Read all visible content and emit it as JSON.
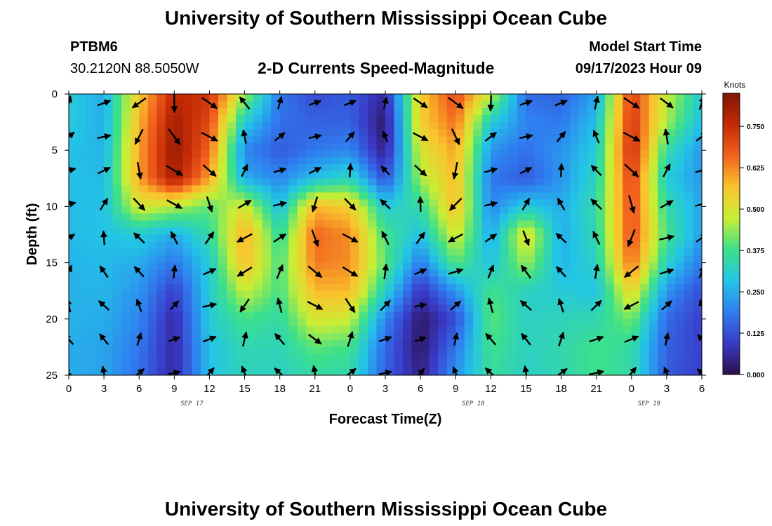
{
  "header": {
    "title": "University of Southern Mississippi Ocean Cube",
    "station_id": "PTBM6",
    "coords": "30.2120N  88.5050W",
    "subtitle": "2-D Currents Speed-Magnitude",
    "model_start_label": "Model Start Time",
    "model_start_value": "09/17/2023 Hour 09"
  },
  "footer": {
    "title": "University of Southern Mississippi Ocean Cube"
  },
  "chart_data": {
    "type": "heatmap",
    "xlabel": "Forecast Time(Z)",
    "ylabel": "Depth (ft)",
    "x_ticks": [
      "0",
      "3",
      "6",
      "9",
      "12",
      "15",
      "18",
      "21",
      "0",
      "3",
      "6",
      "9",
      "12",
      "15",
      "18",
      "21",
      "0",
      "3",
      "6"
    ],
    "x_range_hours": [
      0,
      54
    ],
    "y_ticks": [
      0,
      5,
      10,
      15,
      20,
      25
    ],
    "y_range": [
      0,
      25
    ],
    "date_labels": [
      {
        "hour": 10.5,
        "text": "SEP 17"
      },
      {
        "hour": 34.5,
        "text": "SEP 18"
      },
      {
        "hour": 49.5,
        "text": "SEP 19"
      }
    ],
    "colorbar": {
      "label": "Knots",
      "ticks": [
        "0.000",
        "0.125",
        "0.250",
        "0.375",
        "0.500",
        "0.625",
        "0.750"
      ],
      "range": [
        0,
        0.85
      ],
      "colors": [
        "#2b0f4a",
        "#3a3ac8",
        "#2f7ef0",
        "#23c5e6",
        "#3de08a",
        "#c8ee35",
        "#f9c52d",
        "#f2621e",
        "#c42a05",
        "#801605"
      ]
    },
    "speed_grid_note": "values in knots, rows = depth 0,2.5,...,25 ft; cols = hours 0,3,...,54",
    "speed_grid": [
      [
        0.3,
        0.25,
        0.55,
        0.76,
        0.74,
        0.45,
        0.18,
        0.12,
        0.14,
        0.06,
        0.55,
        0.7,
        0.48,
        0.16,
        0.15,
        0.24,
        0.72,
        0.48,
        0.3
      ],
      [
        0.3,
        0.25,
        0.58,
        0.8,
        0.7,
        0.3,
        0.17,
        0.15,
        0.15,
        0.02,
        0.55,
        0.65,
        0.3,
        0.2,
        0.18,
        0.28,
        0.74,
        0.45,
        0.27
      ],
      [
        0.28,
        0.26,
        0.6,
        0.82,
        0.66,
        0.2,
        0.14,
        0.18,
        0.2,
        0.04,
        0.5,
        0.6,
        0.22,
        0.17,
        0.22,
        0.3,
        0.76,
        0.35,
        0.22
      ],
      [
        0.28,
        0.27,
        0.6,
        0.8,
        0.6,
        0.25,
        0.2,
        0.28,
        0.33,
        0.12,
        0.45,
        0.58,
        0.18,
        0.14,
        0.22,
        0.33,
        0.72,
        0.3,
        0.22
      ],
      [
        0.27,
        0.28,
        0.5,
        0.46,
        0.4,
        0.5,
        0.27,
        0.58,
        0.55,
        0.3,
        0.35,
        0.58,
        0.2,
        0.3,
        0.25,
        0.35,
        0.7,
        0.35,
        0.24
      ],
      [
        0.27,
        0.28,
        0.3,
        0.25,
        0.35,
        0.6,
        0.35,
        0.66,
        0.62,
        0.38,
        0.28,
        0.5,
        0.24,
        0.52,
        0.25,
        0.34,
        0.7,
        0.38,
        0.23
      ],
      [
        0.26,
        0.27,
        0.25,
        0.18,
        0.3,
        0.58,
        0.38,
        0.64,
        0.62,
        0.4,
        0.18,
        0.4,
        0.28,
        0.45,
        0.26,
        0.32,
        0.66,
        0.32,
        0.18
      ],
      [
        0.26,
        0.26,
        0.22,
        0.1,
        0.3,
        0.48,
        0.38,
        0.58,
        0.58,
        0.32,
        0.08,
        0.22,
        0.38,
        0.32,
        0.3,
        0.28,
        0.54,
        0.22,
        0.12
      ],
      [
        0.26,
        0.25,
        0.2,
        0.06,
        0.3,
        0.38,
        0.35,
        0.5,
        0.48,
        0.2,
        0.02,
        0.12,
        0.4,
        0.32,
        0.33,
        0.34,
        0.42,
        0.16,
        0.1
      ],
      [
        0.25,
        0.24,
        0.18,
        0.06,
        0.28,
        0.34,
        0.33,
        0.4,
        0.38,
        0.16,
        0.02,
        0.18,
        0.38,
        0.32,
        0.34,
        0.38,
        0.35,
        0.15,
        0.1
      ],
      [
        0.25,
        0.24,
        0.17,
        0.06,
        0.28,
        0.33,
        0.32,
        0.35,
        0.34,
        0.15,
        0.04,
        0.22,
        0.36,
        0.32,
        0.34,
        0.38,
        0.35,
        0.14,
        0.1
      ]
    ]
  }
}
